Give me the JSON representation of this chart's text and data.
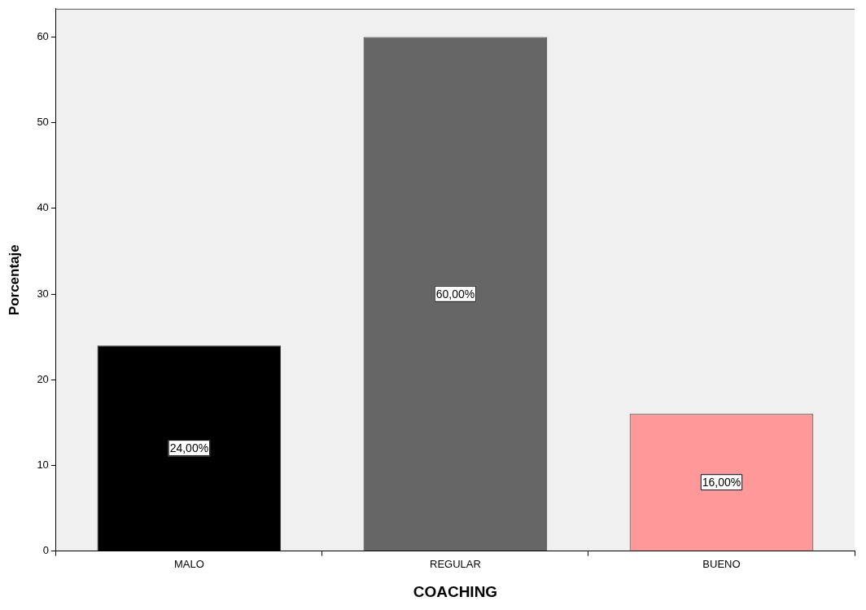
{
  "chart_data": {
    "type": "bar",
    "xlabel": "COACHING",
    "ylabel": "Porcentaje",
    "categories": [
      "MALO",
      "REGULAR",
      "BUENO"
    ],
    "values": [
      24,
      60,
      16
    ],
    "colors": [
      "#000000",
      "#666666",
      "#ff9999"
    ],
    "value_labels": [
      "24,00%",
      "60,00%",
      "16,00%"
    ],
    "ylim": [
      0,
      63.3
    ],
    "yticks": [
      0,
      10,
      20,
      30,
      40,
      50,
      60
    ]
  }
}
